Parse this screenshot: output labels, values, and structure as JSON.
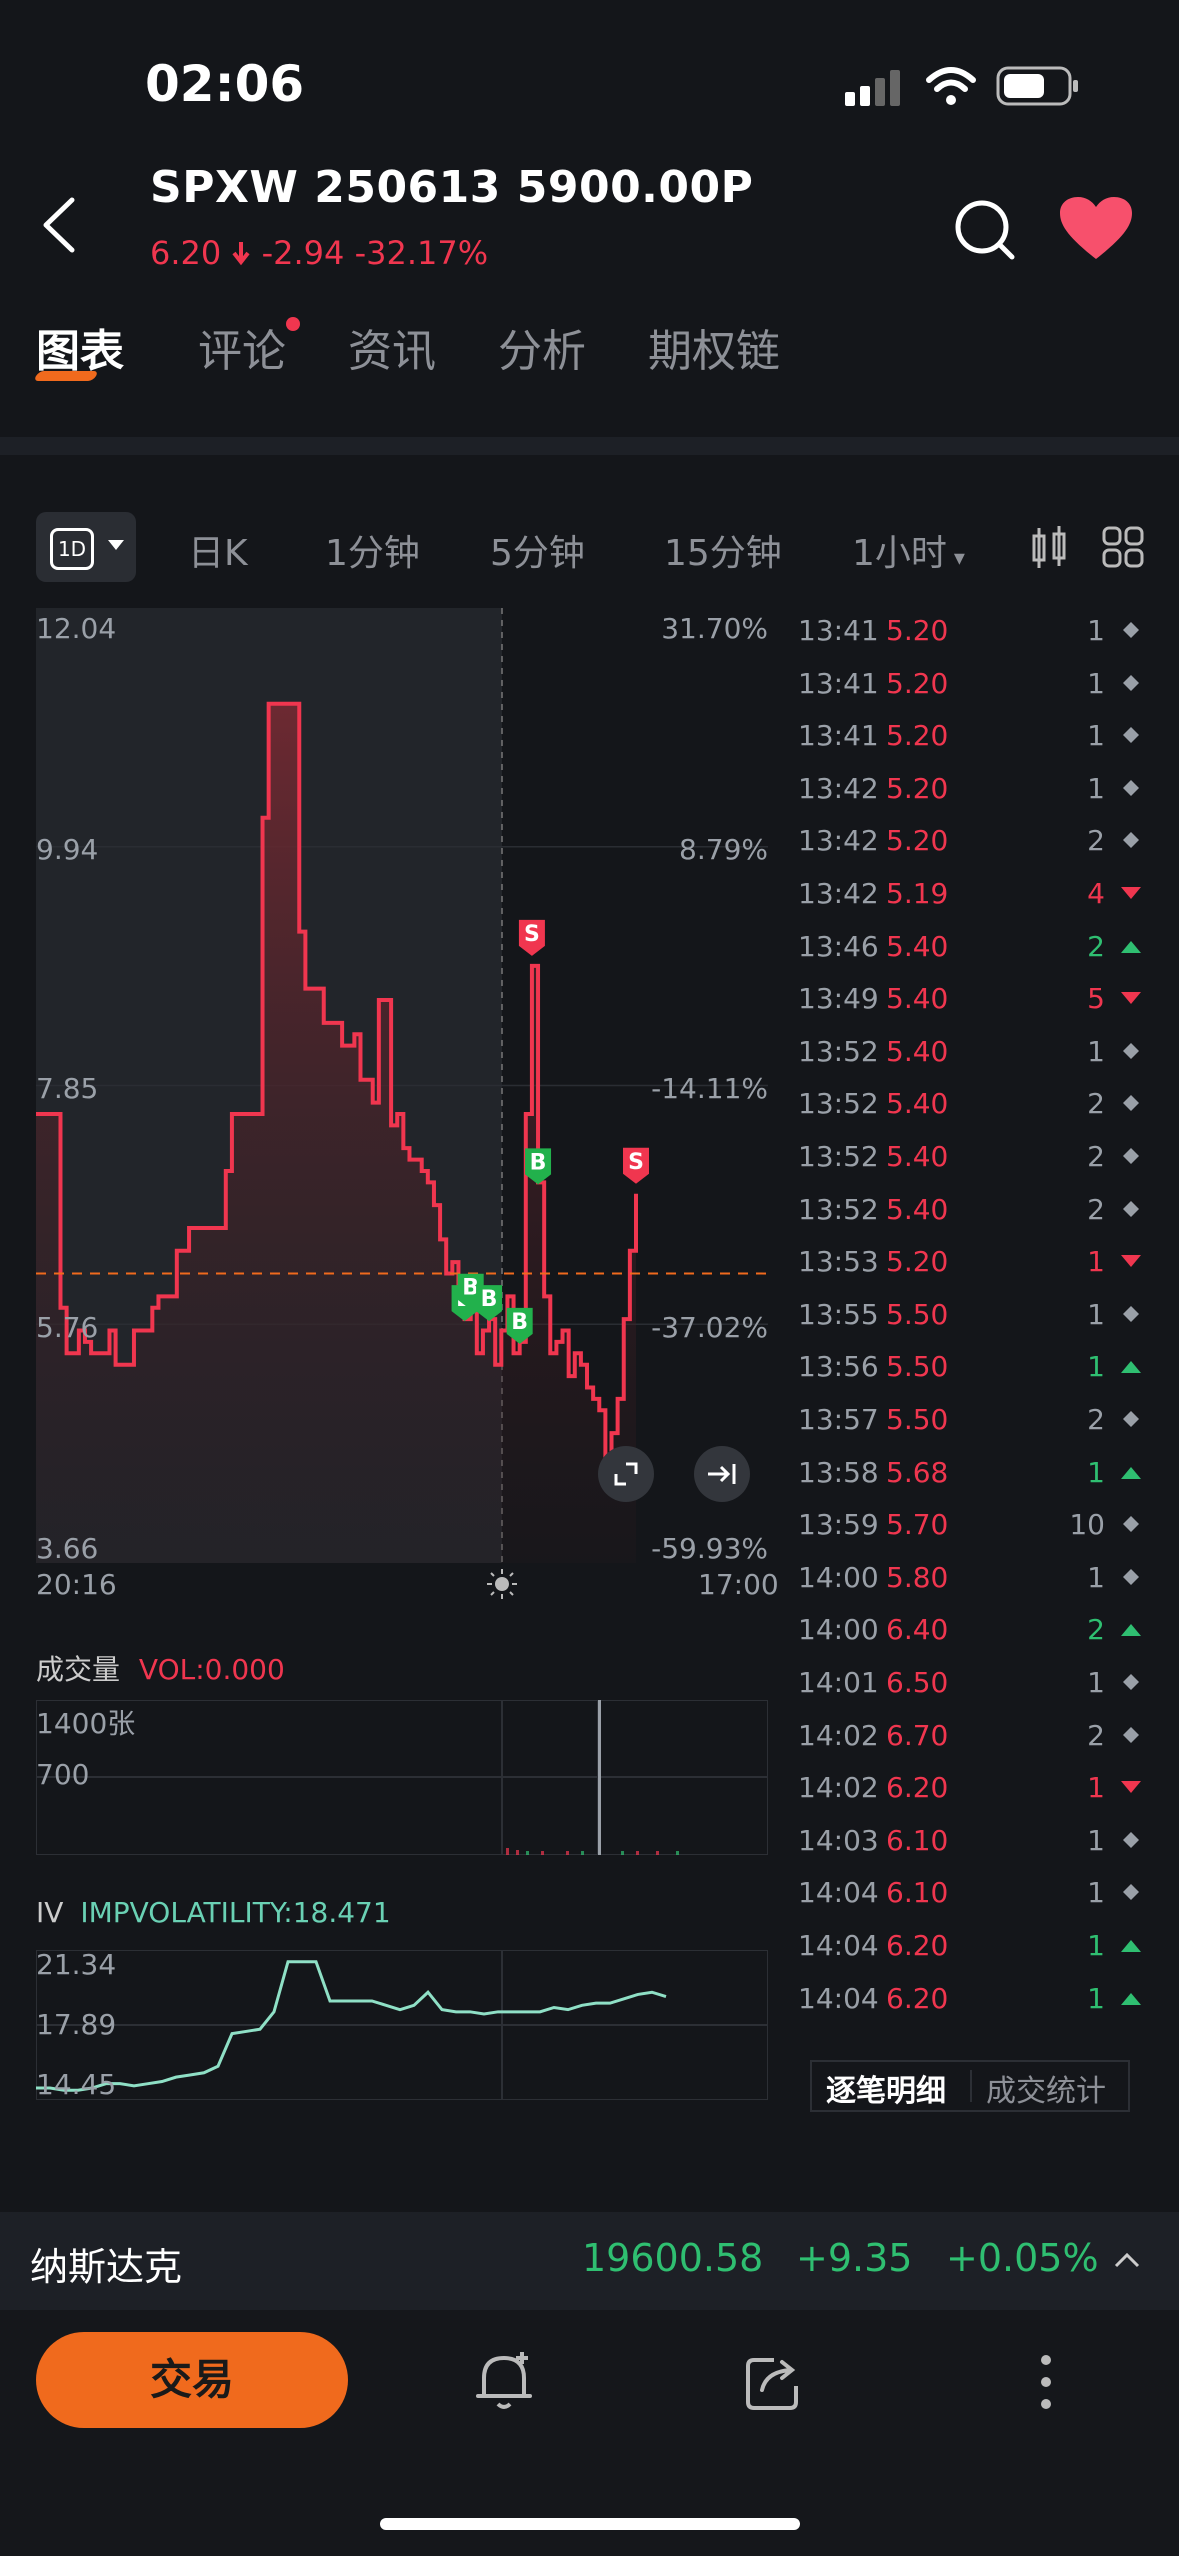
{
  "status_bar": {
    "time": "02:06"
  },
  "header": {
    "title": "SPXW 250613 5900.00P",
    "price": "6.20",
    "change": "-2.94",
    "change_pct": "-32.17%"
  },
  "tabs": [
    {
      "label": "图表",
      "active": true
    },
    {
      "label": "评论",
      "badge": true
    },
    {
      "label": "资讯"
    },
    {
      "label": "分析"
    },
    {
      "label": "期权链"
    }
  ],
  "timeframes": {
    "selected": "1D",
    "items": [
      "日K",
      "1分钟",
      "5分钟",
      "15分钟",
      "1小时"
    ]
  },
  "chart": {
    "y_left": [
      "12.04",
      "9.94",
      "7.85",
      "5.76",
      "3.66"
    ],
    "y_right": [
      "31.70%",
      "8.79%",
      "-14.11%",
      "-37.02%",
      "-59.93%"
    ],
    "x_start": "20:16",
    "x_end": "17:00",
    "markers": [
      "B",
      "B",
      "B",
      "B",
      "B",
      "S",
      "S"
    ]
  },
  "chart_data": {
    "type": "line",
    "title": "",
    "xlabel": "",
    "ylabel": "",
    "x_range": [
      "20:16",
      "17:00"
    ],
    "ylim": [
      3.66,
      12.04
    ],
    "reference_line": 6.2,
    "series": [
      {
        "values": [
          7.6,
          7.6,
          7.6,
          7.6,
          5.9,
          5.5,
          5.5,
          5.7,
          5.6,
          5.5,
          5.5,
          5.5,
          5.7,
          5.4,
          5.4,
          5.4,
          5.7,
          5.7,
          5.7,
          5.9,
          6.0,
          6.0,
          6.0,
          6.4,
          6.4,
          6.6,
          6.6,
          6.6,
          6.6,
          6.6,
          6.6,
          7.1,
          7.6,
          7.6,
          7.6,
          7.6,
          7.6,
          10.2,
          11.2,
          11.2,
          11.2,
          11.2,
          11.2,
          9.2,
          8.7,
          8.7,
          8.7,
          8.4,
          8.4,
          8.4,
          8.2,
          8.2,
          8.3,
          7.9,
          7.9,
          7.7,
          8.6,
          8.6,
          7.5,
          7.6,
          7.3,
          7.2,
          7.2,
          7.1,
          7.0,
          6.8,
          6.5,
          6.2,
          6.3,
          6.1,
          5.8,
          5.9,
          5.5,
          5.7,
          5.8,
          5.4,
          5.7,
          6.0,
          5.5,
          5.6,
          7.6,
          8.9,
          7.0,
          6.0,
          5.5,
          5.6,
          5.7,
          5.3,
          5.5,
          5.4,
          5.2,
          5.1,
          5.0,
          4.6,
          4.8,
          5.1,
          5.8,
          6.4,
          6.9
        ]
      }
    ],
    "volume": {
      "label": "成交量",
      "value_label": "VOL:0.000",
      "ticks": [
        "1400张",
        "700"
      ]
    },
    "iv": {
      "label": "IV",
      "value_label": "IMPVOLATILITY:18.471",
      "ticks": [
        "21.34",
        "17.89",
        "14.45"
      ],
      "values": [
        15.0,
        15.0,
        14.9,
        14.9,
        15.0,
        15.2,
        15.2,
        15.1,
        15.2,
        15.3,
        15.5,
        15.6,
        15.7,
        16.0,
        17.5,
        17.6,
        17.7,
        18.5,
        20.8,
        20.8,
        20.8,
        19.0,
        19.0,
        19.0,
        19.0,
        18.8,
        18.6,
        18.8,
        19.4,
        18.6,
        18.5,
        18.5,
        18.4,
        18.5,
        18.5,
        18.5,
        18.5,
        18.7,
        18.6,
        18.8,
        18.9,
        18.9,
        19.1,
        19.3,
        19.4,
        19.2
      ]
    }
  },
  "trades": [
    {
      "time": "13:41",
      "price": "5.20",
      "qty": "1",
      "dir": "n"
    },
    {
      "time": "13:41",
      "price": "5.20",
      "qty": "1",
      "dir": "n"
    },
    {
      "time": "13:41",
      "price": "5.20",
      "qty": "1",
      "dir": "n"
    },
    {
      "time": "13:42",
      "price": "5.20",
      "qty": "1",
      "dir": "n"
    },
    {
      "time": "13:42",
      "price": "5.20",
      "qty": "2",
      "dir": "n"
    },
    {
      "time": "13:42",
      "price": "5.19",
      "qty": "4",
      "dir": "down"
    },
    {
      "time": "13:46",
      "price": "5.40",
      "qty": "2",
      "dir": "up"
    },
    {
      "time": "13:49",
      "price": "5.40",
      "qty": "5",
      "dir": "down"
    },
    {
      "time": "13:52",
      "price": "5.40",
      "qty": "1",
      "dir": "n"
    },
    {
      "time": "13:52",
      "price": "5.40",
      "qty": "2",
      "dir": "n"
    },
    {
      "time": "13:52",
      "price": "5.40",
      "qty": "2",
      "dir": "n"
    },
    {
      "time": "13:52",
      "price": "5.40",
      "qty": "2",
      "dir": "n"
    },
    {
      "time": "13:53",
      "price": "5.20",
      "qty": "1",
      "dir": "down"
    },
    {
      "time": "13:55",
      "price": "5.50",
      "qty": "1",
      "dir": "n"
    },
    {
      "time": "13:56",
      "price": "5.50",
      "qty": "1",
      "dir": "up"
    },
    {
      "time": "13:57",
      "price": "5.50",
      "qty": "2",
      "dir": "n"
    },
    {
      "time": "13:58",
      "price": "5.68",
      "qty": "1",
      "dir": "up"
    },
    {
      "time": "13:59",
      "price": "5.70",
      "qty": "10",
      "dir": "n"
    },
    {
      "time": "14:00",
      "price": "5.80",
      "qty": "1",
      "dir": "n"
    },
    {
      "time": "14:00",
      "price": "6.40",
      "qty": "2",
      "dir": "up"
    },
    {
      "time": "14:01",
      "price": "6.50",
      "qty": "1",
      "dir": "n"
    },
    {
      "time": "14:02",
      "price": "6.70",
      "qty": "2",
      "dir": "n"
    },
    {
      "time": "14:02",
      "price": "6.20",
      "qty": "1",
      "dir": "down"
    },
    {
      "time": "14:03",
      "price": "6.10",
      "qty": "1",
      "dir": "n"
    },
    {
      "time": "14:04",
      "price": "6.10",
      "qty": "1",
      "dir": "n"
    },
    {
      "time": "14:04",
      "price": "6.20",
      "qty": "1",
      "dir": "up"
    },
    {
      "time": "14:04",
      "price": "6.20",
      "qty": "1",
      "dir": "up"
    }
  ],
  "trade_tabs": {
    "detail": "逐笔明细",
    "stats": "成交统计"
  },
  "nasdaq": {
    "name": "纳斯达克",
    "value": "19600.58",
    "change": "+9.35",
    "change_pct": "+0.05%"
  },
  "bottom": {
    "trade_label": "交易"
  },
  "colors": {
    "up": "#2fbf71",
    "down": "#f0364f",
    "accent": "#f06a1d",
    "background": "#14161a"
  }
}
